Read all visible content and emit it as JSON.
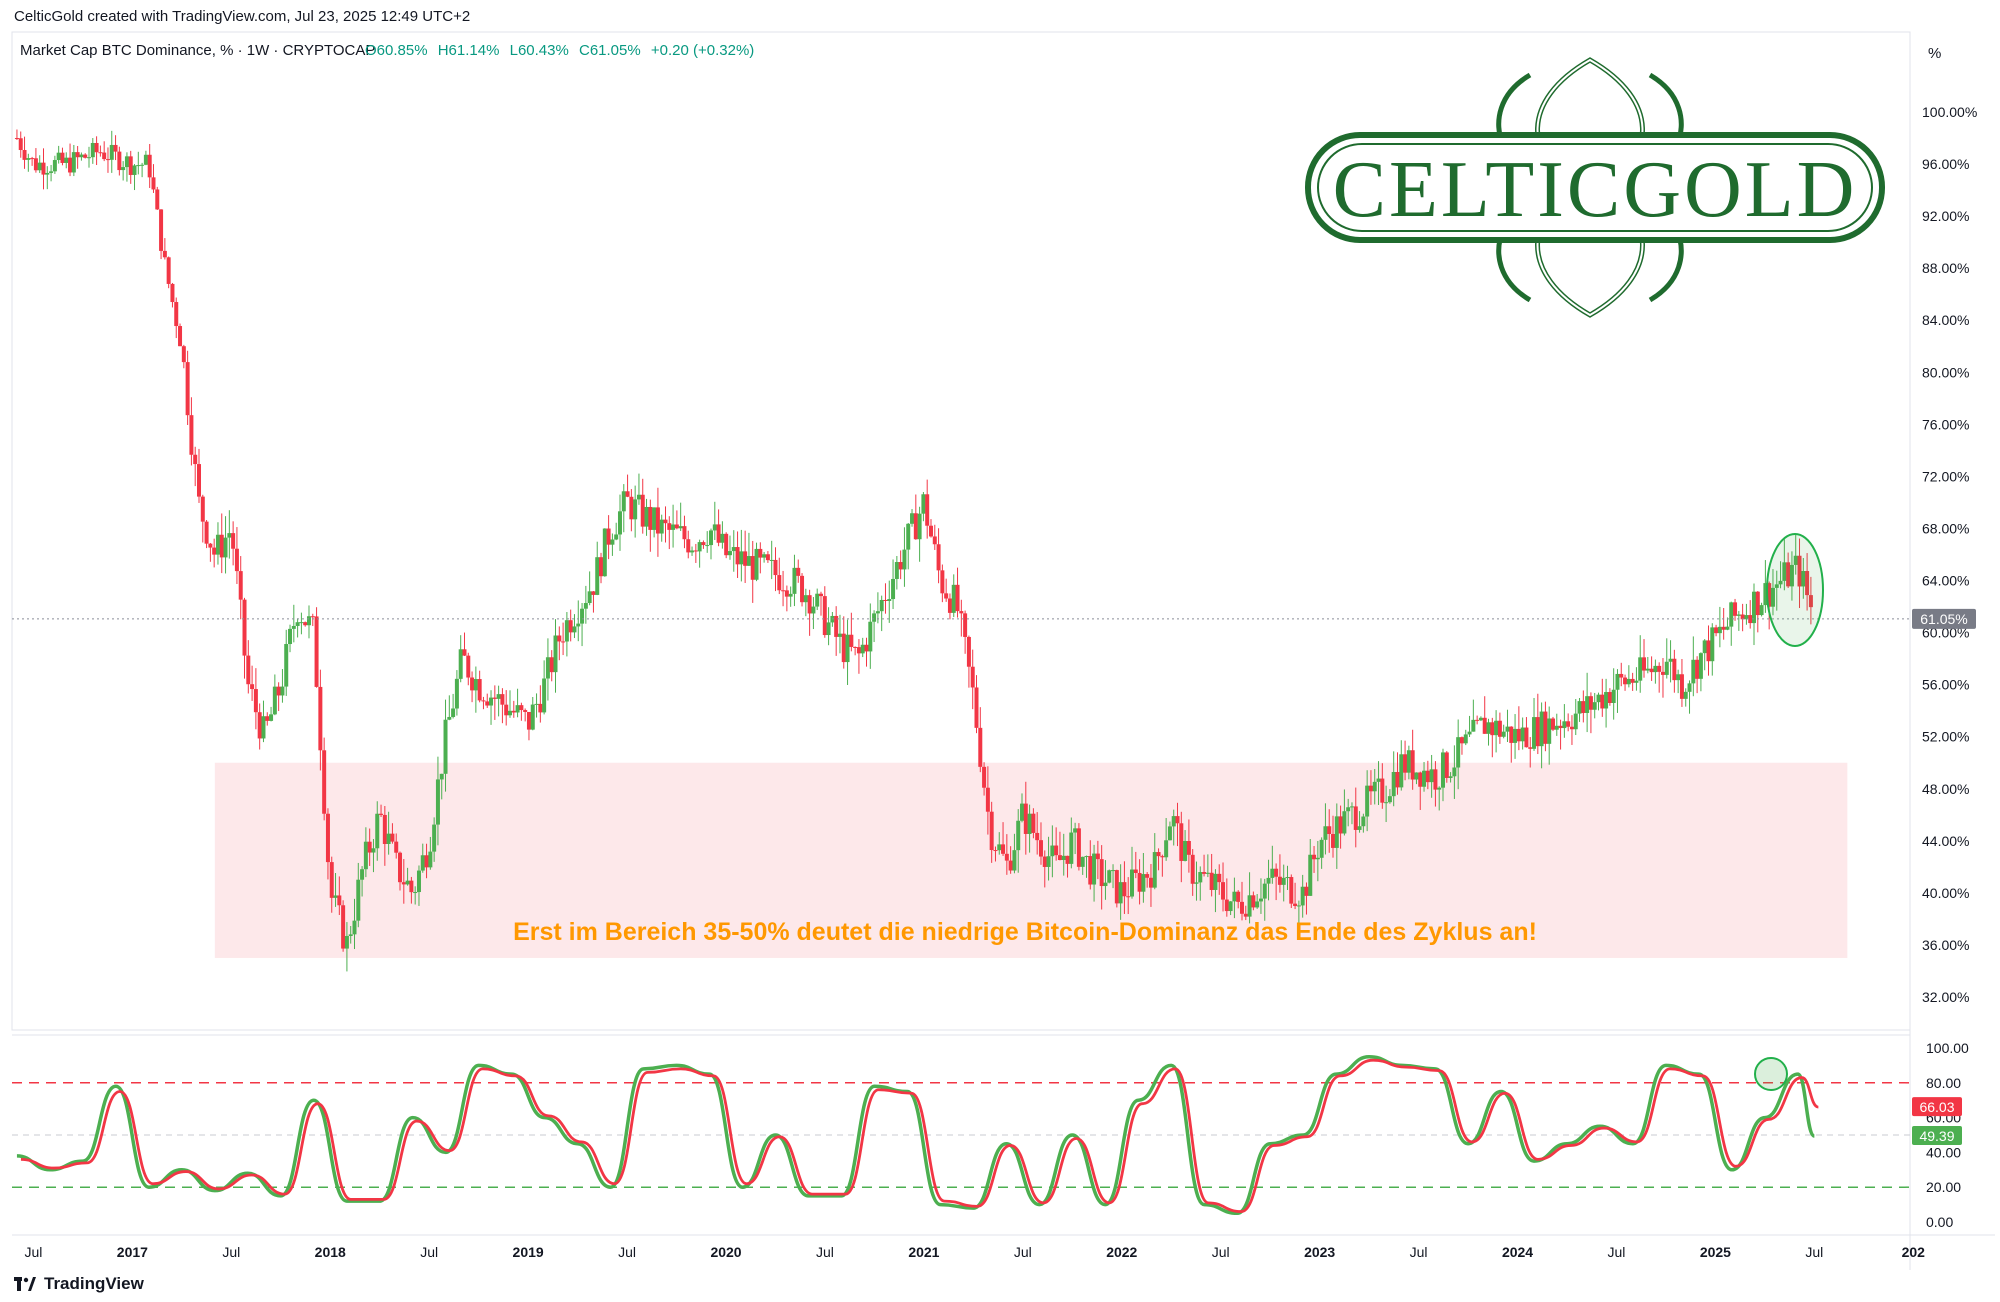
{
  "header": {
    "credit": "CelticGold created with TradingView.com, Jul 23, 2025 12:49 UTC+2"
  },
  "symbol_line": {
    "name": "Market Cap BTC Dominance, % · 1W · CRYPTOCAP",
    "o": "O60.85%",
    "h": "H61.14%",
    "l": "L60.43%",
    "c": "C61.05%",
    "chg": "+0.20 (+0.32%)"
  },
  "logo_text": "CELTICGOLD",
  "price_axis": {
    "unit_label": "%",
    "ticks": [
      "100.00%",
      "96.00%",
      "92.00%",
      "88.00%",
      "84.00%",
      "80.00%",
      "76.00%",
      "72.00%",
      "68.00%",
      "64.00%",
      "60.00%",
      "56.00%",
      "52.00%",
      "48.00%",
      "44.00%",
      "40.00%",
      "36.00%",
      "32.00%"
    ],
    "last_price_label": "61.05%"
  },
  "annotation": "Erst im Bereich 35-50% deutet die niedrige Bitcoin-Dominanz das Ende des Zyklus an!",
  "oscillator_axis": {
    "ticks": [
      "100.00",
      "80.00",
      "60.00",
      "40.00",
      "20.00",
      "0.00"
    ],
    "k_label": "66.03",
    "d_label": "49.39"
  },
  "time_axis": [
    "Jul",
    "2017",
    "Jul",
    "2018",
    "Jul",
    "2019",
    "Jul",
    "2020",
    "Jul",
    "2021",
    "Jul",
    "2022",
    "Jul",
    "2023",
    "Jul",
    "2024",
    "Jul",
    "2025",
    "Jul",
    "202"
  ],
  "footer": {
    "brand": "TradingView"
  },
  "colors": {
    "up": "#4caf50",
    "down": "#f23645",
    "zone": "#fde8ea",
    "annotation": "#ff9800",
    "circle": "#22b04b"
  },
  "chart_data": [
    {
      "type": "candlestick",
      "title": "Market Cap BTC Dominance, % · 1W · CRYPTOCAP",
      "ylim": [
        30,
        103
      ],
      "x_range": [
        "2016-06",
        "2026-01"
      ],
      "highlight_zone": {
        "y_from": 35,
        "y_to": 50,
        "x_from": "2017-06",
        "x_to": "2025-09",
        "label": "Erst im Bereich 35-50% deutet die niedrige Bitcoin-Dominanz das Ende des Zyklus an!"
      },
      "last_value": 61.05,
      "points": [
        [
          "2016-06",
          98
        ],
        [
          "2016-07",
          96
        ],
        [
          "2016-09",
          96
        ],
        [
          "2016-11",
          97
        ],
        [
          "2017-01",
          96
        ],
        [
          "2017-02",
          96
        ],
        [
          "2017-03",
          88
        ],
        [
          "2017-04",
          82
        ],
        [
          "2017-05",
          70
        ],
        [
          "2017-06",
          66
        ],
        [
          "2017-07",
          68
        ],
        [
          "2017-08",
          56
        ],
        [
          "2017-09",
          52
        ],
        [
          "2017-10",
          56
        ],
        [
          "2017-11",
          62
        ],
        [
          "2017-12",
          60
        ],
        [
          "2018-01",
          40
        ],
        [
          "2018-02",
          36
        ],
        [
          "2018-03",
          42
        ],
        [
          "2018-04",
          46
        ],
        [
          "2018-05",
          42
        ],
        [
          "2018-06",
          40
        ],
        [
          "2018-07",
          44
        ],
        [
          "2018-08",
          52
        ],
        [
          "2018-09",
          58
        ],
        [
          "2018-10",
          56
        ],
        [
          "2018-11",
          55
        ],
        [
          "2018-12",
          54
        ],
        [
          "2019-01",
          53
        ],
        [
          "2019-02",
          56
        ],
        [
          "2019-03",
          60
        ],
        [
          "2019-05",
          64
        ],
        [
          "2019-06",
          68
        ],
        [
          "2019-07",
          70
        ],
        [
          "2019-09",
          68
        ],
        [
          "2019-11",
          67
        ],
        [
          "2019-12",
          68
        ],
        [
          "2020-01",
          66
        ],
        [
          "2020-03",
          65
        ],
        [
          "2020-05",
          64
        ],
        [
          "2020-06",
          63
        ],
        [
          "2020-08",
          59
        ],
        [
          "2020-09",
          58
        ],
        [
          "2020-11",
          64
        ],
        [
          "2020-12",
          67
        ],
        [
          "2021-01",
          70
        ],
        [
          "2021-02",
          64
        ],
        [
          "2021-03",
          62
        ],
        [
          "2021-04",
          55
        ],
        [
          "2021-05",
          45
        ],
        [
          "2021-06",
          42
        ],
        [
          "2021-07",
          46
        ],
        [
          "2021-09",
          42
        ],
        [
          "2021-10",
          44
        ],
        [
          "2021-11",
          42
        ],
        [
          "2022-01",
          40
        ],
        [
          "2022-02",
          41
        ],
        [
          "2022-03",
          42
        ],
        [
          "2022-04",
          46
        ],
        [
          "2022-05",
          42
        ],
        [
          "2022-06",
          41
        ],
        [
          "2022-08",
          39
        ],
        [
          "2022-09",
          40
        ],
        [
          "2022-10",
          41
        ],
        [
          "2022-12",
          40
        ],
        [
          "2023-01",
          44
        ],
        [
          "2023-03",
          46
        ],
        [
          "2023-05",
          48
        ],
        [
          "2023-06",
          50
        ],
        [
          "2023-08",
          49
        ],
        [
          "2023-09",
          50
        ],
        [
          "2023-11",
          53
        ],
        [
          "2024-01",
          52
        ],
        [
          "2024-03",
          53
        ],
        [
          "2024-05",
          54
        ],
        [
          "2024-07",
          56
        ],
        [
          "2024-09",
          57
        ],
        [
          "2024-10",
          58
        ],
        [
          "2024-11",
          56
        ],
        [
          "2024-12",
          58
        ],
        [
          "2025-02",
          61
        ],
        [
          "2025-04",
          63
        ],
        [
          "2025-05",
          64
        ],
        [
          "2025-06",
          65
        ],
        [
          "2025-07",
          61.05
        ]
      ]
    },
    {
      "type": "line",
      "title": "Stochastic oscillator",
      "ylim": [
        0,
        100
      ],
      "levels": [
        80,
        50,
        20
      ],
      "series": [
        {
          "values_x": [
            "2016-06",
            "2016-08",
            "2016-10",
            "2016-12",
            "2017-02",
            "2017-04",
            "2017-06",
            "2017-08",
            "2017-10",
            "2017-12",
            "2018-02",
            "2018-04",
            "2018-06",
            "2018-08",
            "2018-10",
            "2018-12",
            "2019-02",
            "2019-04",
            "2019-06",
            "2019-08",
            "2019-10",
            "2019-12",
            "2020-02",
            "2020-04",
            "2020-06",
            "2020-08",
            "2020-10",
            "2020-12",
            "2021-02",
            "2021-04",
            "2021-06",
            "2021-08",
            "2021-10",
            "2021-12",
            "2022-02",
            "2022-04",
            "2022-06",
            "2022-08",
            "2022-10",
            "2022-12",
            "2023-02",
            "2023-04",
            "2023-06",
            "2023-08",
            "2023-10",
            "2023-12",
            "2024-02",
            "2024-04",
            "2024-06",
            "2024-08",
            "2024-10",
            "2024-12",
            "2025-02",
            "2025-04",
            "2025-06",
            "2025-07"
          ],
          "values": [
            38,
            30,
            35,
            78,
            20,
            30,
            18,
            28,
            15,
            70,
            12,
            12,
            60,
            40,
            90,
            85,
            60,
            45,
            20,
            88,
            90,
            85,
            20,
            50,
            15,
            15,
            78,
            75,
            10,
            8,
            45,
            10,
            50,
            10,
            70,
            90,
            10,
            5,
            45,
            50,
            85,
            95,
            90,
            88,
            45,
            75,
            35,
            45,
            55,
            45,
            90,
            85,
            30,
            60,
            85,
            49.39
          ]
        },
        {
          "values_x": [
            "2016-06",
            "2016-08",
            "2016-10",
            "2016-12",
            "2017-02",
            "2017-04",
            "2017-06",
            "2017-08",
            "2017-10",
            "2017-12",
            "2018-02",
            "2018-04",
            "2018-06",
            "2018-08",
            "2018-10",
            "2018-12",
            "2019-02",
            "2019-04",
            "2019-06",
            "2019-08",
            "2019-10",
            "2019-12",
            "2020-02",
            "2020-04",
            "2020-06",
            "2020-08",
            "2020-10",
            "2020-12",
            "2021-02",
            "2021-04",
            "2021-06",
            "2021-08",
            "2021-10",
            "2021-12",
            "2022-02",
            "2022-04",
            "2022-06",
            "2022-08",
            "2022-10",
            "2022-12",
            "2023-02",
            "2023-04",
            "2023-06",
            "2023-08",
            "2023-10",
            "2023-12",
            "2024-02",
            "2024-04",
            "2024-06",
            "2024-08",
            "2024-10",
            "2024-12",
            "2025-02",
            "2025-04",
            "2025-06",
            "2025-07"
          ],
          "values": [
            36,
            31,
            34,
            75,
            22,
            29,
            19,
            27,
            16,
            68,
            13,
            13,
            58,
            41,
            88,
            84,
            61,
            46,
            22,
            86,
            88,
            84,
            22,
            49,
            16,
            16,
            76,
            74,
            12,
            9,
            44,
            11,
            48,
            11,
            68,
            88,
            11,
            6,
            44,
            49,
            84,
            93,
            89,
            87,
            46,
            74,
            36,
            44,
            54,
            46,
            88,
            84,
            32,
            59,
            83,
            66.03
          ]
        }
      ]
    }
  ]
}
